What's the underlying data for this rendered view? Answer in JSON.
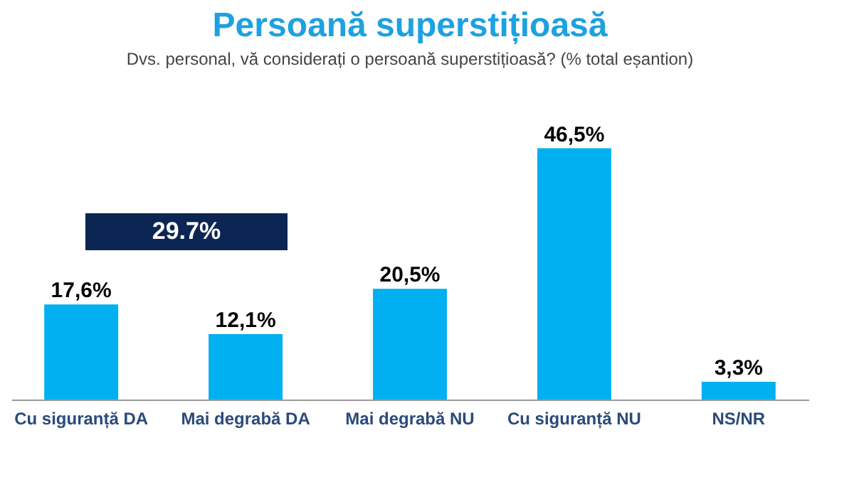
{
  "chart_data": {
    "type": "bar",
    "title": "Persoană superstițioasă",
    "subtitle": "Dvs. personal, vă considerați o persoană superstițioasă? (% total eșantion)",
    "categories": [
      "Cu siguranță DA",
      "Mai degrabă DA",
      "Mai degrabă NU",
      "Cu siguranță NU",
      "NS/NR"
    ],
    "values": [
      17.6,
      12.1,
      20.5,
      46.5,
      3.3
    ],
    "value_labels": [
      "17,6%",
      "12,1%",
      "20,5%",
      "46,5%",
      "3,3%"
    ],
    "color": "#00b0f0",
    "annotations": [
      "29.7%"
    ]
  }
}
